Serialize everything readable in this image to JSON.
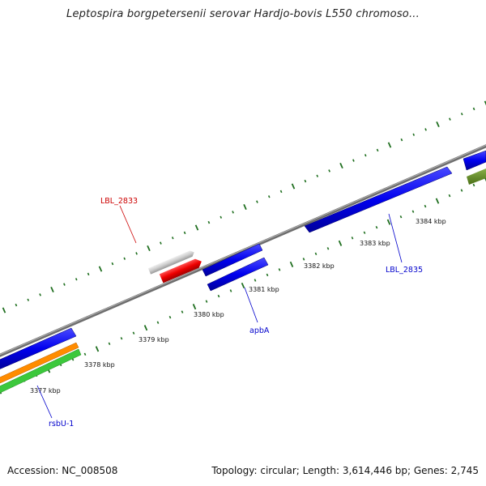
{
  "title": "Leptospira borgpetersenii serovar Hardjo-bovis L550 chromoso...",
  "footer": {
    "accession": "Accession: NC_008508",
    "stats": "Topology: circular; Length: 3,614,446 bp; Genes: 2,745"
  },
  "scale": {
    "tick_labels": [
      "3377 kbp",
      "3378 kbp",
      "3379 kbp",
      "3380 kbp",
      "3381 kbp",
      "3382 kbp",
      "3383 kbp",
      "3384 kbp"
    ]
  },
  "gene_labels": {
    "lbl2833": "LBL_2833",
    "lbl2835": "LBL_2835",
    "apba": "apbA",
    "rsbu1": "rsbU-1"
  },
  "colors": {
    "backbone": "#808080",
    "tick": "#1e6e1e",
    "gene_blue": "#0000ee",
    "gene_red": "#ee0000",
    "gene_gray": "#c8c8c8",
    "gene_orange": "#ff8c00",
    "gene_green": "#3cc83c",
    "gene_olive": "#5a8a1e",
    "label_red": "#cc0000",
    "label_blue": "#0000cc"
  }
}
